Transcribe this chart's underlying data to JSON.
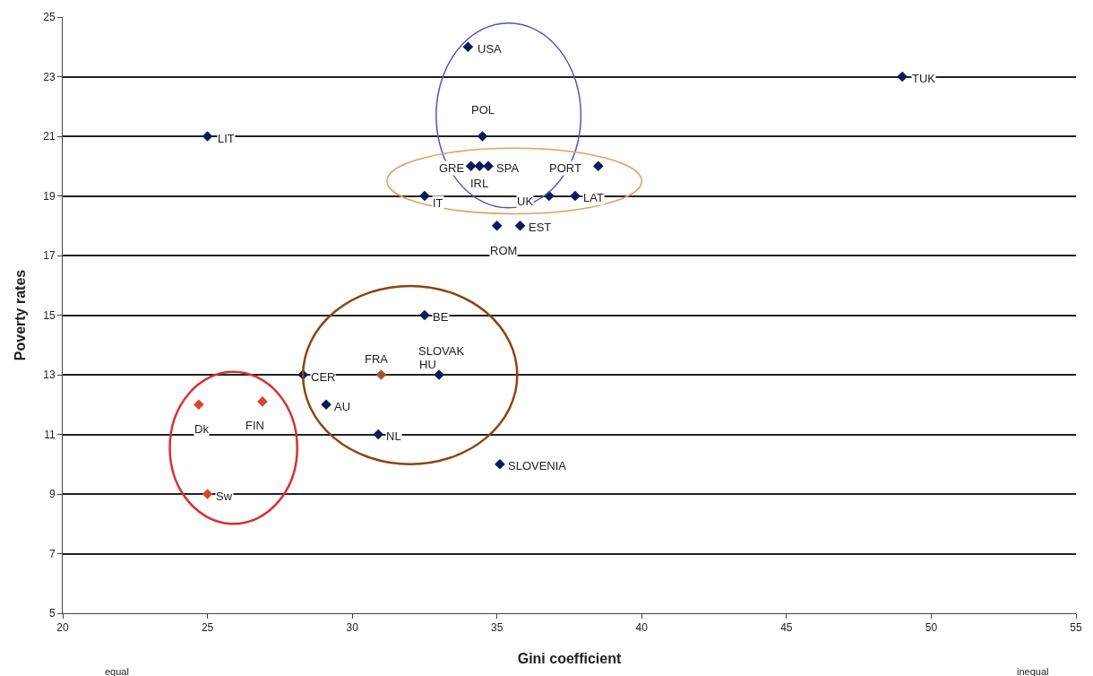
{
  "chart_data": {
    "type": "scatter",
    "xlabel": "Gini coefficient",
    "ylabel": "Poverty rates",
    "x": [
      34.0,
      49.0,
      25.0,
      34.5,
      34.1,
      34.4,
      34.7,
      38.5,
      32.5,
      36.8,
      37.7,
      35.0,
      35.8,
      32.5,
      28.3,
      31.0,
      33.0,
      29.1,
      30.9,
      35.1,
      24.7,
      26.9,
      25.0
    ],
    "values": [
      24,
      23,
      21,
      21,
      20,
      20,
      20,
      20,
      19,
      19,
      19,
      18,
      18,
      15,
      13,
      13,
      13,
      12,
      11,
      10,
      12,
      12.1,
      9
    ],
    "colors": [
      "#0d1a5c",
      "#0d1a5c",
      "#0d1a5c",
      "#0d1a5c",
      "#0d1a5c",
      "#0d1a5c",
      "#0d1a5c",
      "#0d1a5c",
      "#0d1a5c",
      "#0d1a5c",
      "#0d1a5c",
      "#0d1a5c",
      "#0d1a5c",
      "#0d1a5c",
      "#0d1a5c",
      "#a0522d",
      "#0d1a5c",
      "#0d1a5c",
      "#0d1a5c",
      "#0d1a5c",
      "#d9452b",
      "#d9452b",
      "#d9452b"
    ],
    "marker": "diamond",
    "xlim": [
      20,
      55
    ],
    "xticks": [
      20,
      25,
      30,
      35,
      40,
      45,
      50,
      55
    ],
    "ylim": [
      5,
      25
    ],
    "yticks": [
      5,
      7,
      9,
      11,
      13,
      15,
      17,
      19,
      21,
      23,
      25
    ],
    "grid": "y",
    "legend": false,
    "annotations": [
      {
        "text": "USA",
        "x": 34.0,
        "y": 24
      },
      {
        "text": "TUK",
        "x": 49.0,
        "y": 23
      },
      {
        "text": "LIT",
        "x": 25.0,
        "y": 21
      },
      {
        "text": "POL",
        "x": 34.5,
        "y": 21
      },
      {
        "text": "GRE",
        "x": 34.1,
        "y": 20
      },
      {
        "text": "IRL",
        "x": 34.4,
        "y": 20
      },
      {
        "text": "SPA",
        "x": 34.7,
        "y": 20
      },
      {
        "text": "PORT",
        "x": 38.5,
        "y": 20
      },
      {
        "text": "IT",
        "x": 32.5,
        "y": 19
      },
      {
        "text": "UK",
        "x": 36.8,
        "y": 19
      },
      {
        "text": "LAT",
        "x": 37.7,
        "y": 19
      },
      {
        "text": "ROM",
        "x": 35.0,
        "y": 18
      },
      {
        "text": "EST",
        "x": 35.8,
        "y": 18
      },
      {
        "text": "BE",
        "x": 32.5,
        "y": 15
      },
      {
        "text": "CER",
        "x": 28.3,
        "y": 13
      },
      {
        "text": "FRA",
        "x": 31.0,
        "y": 13
      },
      {
        "text": "SLOVAK",
        "x": 33.0,
        "y": 13
      },
      {
        "text": "HU",
        "x": 33.0,
        "y": 13
      },
      {
        "text": "AU",
        "x": 29.1,
        "y": 12
      },
      {
        "text": "NL",
        "x": 30.9,
        "y": 11
      },
      {
        "text": "SLOVENIA",
        "x": 35.1,
        "y": 10
      },
      {
        "text": "Dk",
        "x": 24.7,
        "y": 12
      },
      {
        "text": "FIN",
        "x": 26.9,
        "y": 12.1
      },
      {
        "text": "Sw",
        "x": 25.0,
        "y": 9
      },
      "equal",
      "inequal"
    ]
  }
}
